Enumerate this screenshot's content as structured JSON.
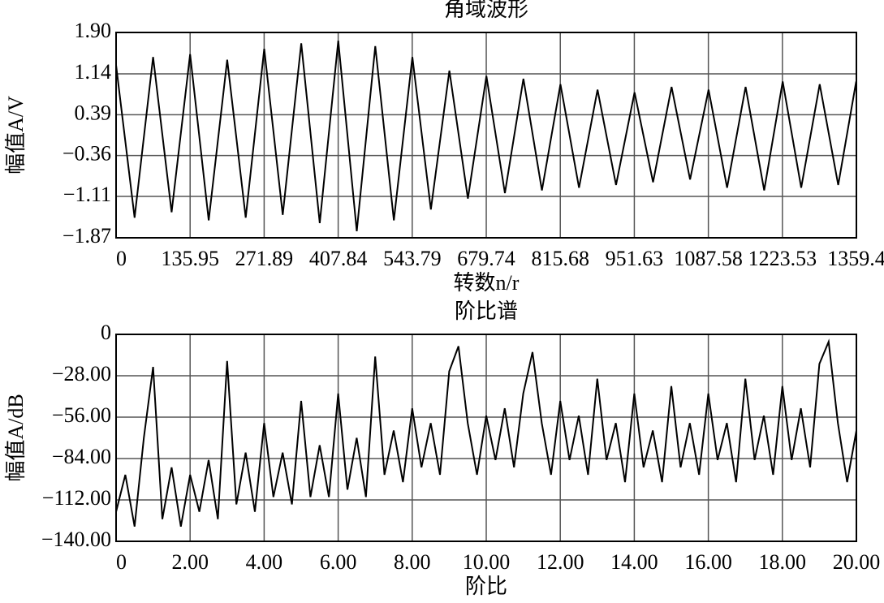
{
  "chart_data": [
    {
      "type": "line",
      "title": "角域波形",
      "ylabel": "幅值A/V",
      "xlabel": "转数n/r",
      "color": "#000000",
      "grid": true,
      "xlim": [
        0,
        1359.4
      ],
      "ylim": [
        -1.87,
        1.9
      ],
      "xticks": [
        0,
        135.95,
        271.89,
        407.84,
        543.79,
        679.74,
        815.68,
        951.63,
        1087.58,
        1223.53,
        1359.4
      ],
      "yticks": [
        {
          "value": 1.9,
          "label": "1.90"
        },
        1.14,
        0.39,
        {
          "value": -0.36,
          "label": "−0.36"
        },
        {
          "value": -1.11,
          "label": "−1.11"
        },
        {
          "value": -1.87,
          "label": "−1.87"
        }
      ],
      "x": [
        0,
        34,
        68,
        102,
        136,
        170,
        204,
        238,
        272,
        306,
        340,
        374,
        408,
        442,
        476,
        510,
        544,
        578,
        612,
        646,
        680,
        714,
        748,
        782,
        816,
        850,
        884,
        918,
        952,
        986,
        1020,
        1054,
        1088,
        1122,
        1156,
        1190,
        1224,
        1258,
        1292,
        1326,
        1359
      ],
      "values": [
        1.3,
        -1.5,
        1.45,
        -1.4,
        1.5,
        -1.55,
        1.4,
        -1.5,
        1.6,
        -1.45,
        1.7,
        -1.6,
        1.75,
        -1.75,
        1.65,
        -1.55,
        1.45,
        -1.35,
        1.2,
        -1.15,
        1.1,
        -1.05,
        1.05,
        -1.0,
        0.95,
        -0.95,
        0.85,
        -0.9,
        0.8,
        -0.85,
        0.9,
        -0.8,
        0.85,
        -0.95,
        0.9,
        -1.0,
        1.0,
        -0.95,
        0.95,
        -0.9,
        1.0
      ]
    },
    {
      "type": "line",
      "title": "阶比谱",
      "ylabel": "幅值A/dB",
      "xlabel": "阶比",
      "color": "#000000",
      "grid": true,
      "xlim": [
        0,
        20
      ],
      "ylim": [
        -140,
        0
      ],
      "xticks": [
        0,
        {
          "value": 2,
          "label": "2.00"
        },
        {
          "value": 4,
          "label": "4.00"
        },
        {
          "value": 6,
          "label": "6.00"
        },
        {
          "value": 8,
          "label": "8.00"
        },
        {
          "value": 10,
          "label": "10.00"
        },
        {
          "value": 12,
          "label": "12.00"
        },
        {
          "value": 14,
          "label": "14.00"
        },
        {
          "value": 16,
          "label": "16.00"
        },
        {
          "value": 18,
          "label": "18.00"
        },
        {
          "value": 20,
          "label": "20.00"
        }
      ],
      "yticks": [
        0,
        {
          "value": -28,
          "label": "−28.00"
        },
        {
          "value": -56,
          "label": "−56.00"
        },
        {
          "value": -84,
          "label": "−84.00"
        },
        {
          "value": -112,
          "label": "−112.00"
        },
        {
          "value": -140,
          "label": "−140.00"
        }
      ],
      "x": [
        0,
        0.25,
        0.5,
        0.75,
        1,
        1.25,
        1.5,
        1.75,
        2,
        2.25,
        2.5,
        2.75,
        3,
        3.25,
        3.5,
        3.75,
        4,
        4.25,
        4.5,
        4.75,
        5,
        5.25,
        5.5,
        5.75,
        6,
        6.25,
        6.5,
        6.75,
        7,
        7.25,
        7.5,
        7.75,
        8,
        8.25,
        8.5,
        8.75,
        9,
        9.25,
        9.5,
        9.75,
        10,
        10.25,
        10.5,
        10.75,
        11,
        11.25,
        11.5,
        11.75,
        12,
        12.25,
        12.5,
        12.75,
        13,
        13.25,
        13.5,
        13.75,
        14,
        14.25,
        14.5,
        14.75,
        15,
        15.25,
        15.5,
        15.75,
        16,
        16.25,
        16.5,
        16.75,
        17,
        17.25,
        17.5,
        17.75,
        18,
        18.25,
        18.5,
        18.75,
        19,
        19.25,
        19.5,
        19.75,
        20
      ],
      "values": [
        -120,
        -95,
        -130,
        -70,
        -22,
        -125,
        -90,
        -130,
        -95,
        -120,
        -85,
        -125,
        -18,
        -115,
        -80,
        -120,
        -60,
        -110,
        -80,
        -115,
        -45,
        -110,
        -75,
        -110,
        -40,
        -105,
        -70,
        -110,
        -15,
        -95,
        -65,
        -100,
        -50,
        -90,
        -60,
        -95,
        -25,
        -8,
        -60,
        -95,
        -55,
        -85,
        -50,
        -90,
        -40,
        -12,
        -60,
        -95,
        -45,
        -85,
        -55,
        -95,
        -30,
        -85,
        -60,
        -100,
        -40,
        -90,
        -65,
        -100,
        -35,
        -90,
        -60,
        -95,
        -40,
        -85,
        -60,
        -100,
        -30,
        -85,
        -55,
        -95,
        -35,
        -85,
        -50,
        -90,
        -20,
        -5,
        -60,
        -100,
        -65
      ]
    }
  ]
}
